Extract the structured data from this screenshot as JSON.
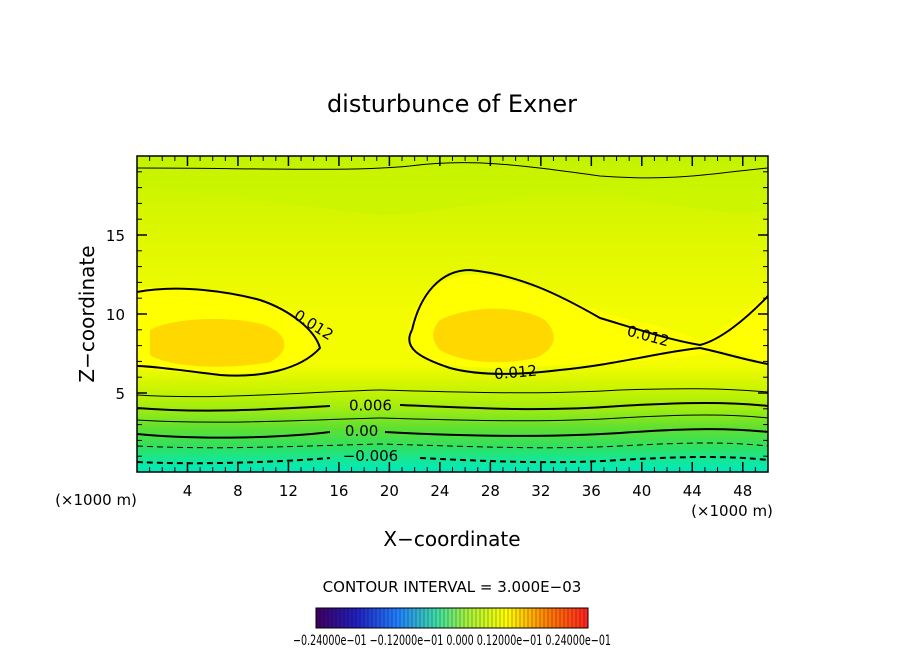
{
  "chart_data": {
    "type": "heatmap",
    "title": "disturbunce of Exner",
    "xlabel": "X−coordinate",
    "ylabel": "Z−coordinate",
    "x_unit": "(×1000 m)",
    "y_unit": "(×1000 m)",
    "xlim": [
      0,
      50
    ],
    "ylim": [
      0,
      20
    ],
    "x_ticks": [
      4,
      8,
      12,
      16,
      20,
      24,
      28,
      32,
      36,
      40,
      44,
      48
    ],
    "y_ticks": [
      5,
      10,
      15
    ],
    "contour_interval_label": "CONTOUR INTERVAL = 3.000E−03",
    "contour_labels": [
      {
        "text": "0.012",
        "x": 14.0,
        "z": 9.3,
        "rotate": 32
      },
      {
        "text": "0.012",
        "x": 40.5,
        "z": 8.6,
        "rotate": 15
      },
      {
        "text": "0.012",
        "x": 30.0,
        "z": 6.3,
        "rotate": -5
      },
      {
        "text": "0.006",
        "x": 18.5,
        "z": 4.2,
        "rotate": 0
      },
      {
        "text": "0.00",
        "x": 17.8,
        "z": 2.6,
        "rotate": 0
      },
      {
        "text": "−0.006",
        "x": 18.5,
        "z": 1.0,
        "rotate": 0
      }
    ],
    "colorbar": {
      "min": -0.024,
      "max": 0.024,
      "tick_labels_text": "−0.24000e−01  −0.12000e−01  0.000  0.12000e−01  0.24000e−01"
    },
    "colors": {
      "level_top": "#b8f000",
      "level_mid": "#e8f800",
      "level_high": "#ffff00",
      "level_peak": "#ffd200",
      "level_low": "#30e860",
      "level_bottom": "#00e8c0"
    }
  }
}
